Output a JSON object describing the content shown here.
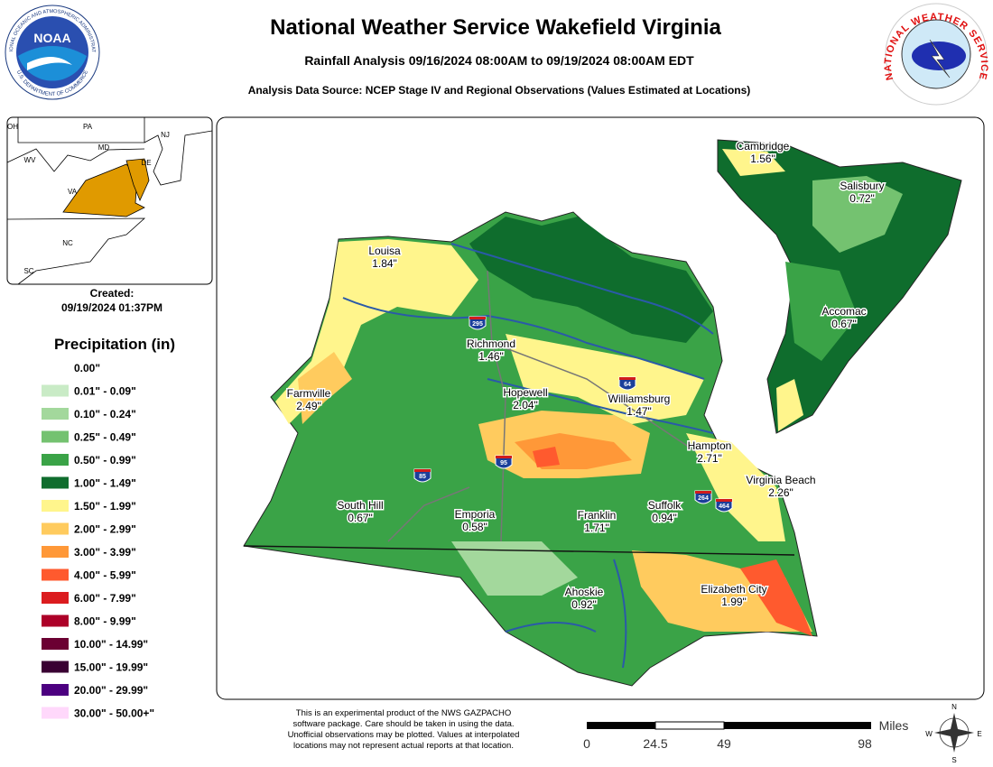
{
  "header": {
    "title": "National Weather Service Wakefield Virginia",
    "subtitle": "Rainfall Analysis 09/16/2024 08:00AM to 09/19/2024 08:00AM EDT",
    "source": "Analysis Data Source: NCEP Stage IV and Regional Observations (Values Estimated at Locations)"
  },
  "logos": {
    "noaa": "NOAA",
    "noaa_ring_top": "NATIONAL OCEANIC AND ATMOSPHERIC ADMINISTRATION",
    "noaa_ring_bottom": "U.S. DEPARTMENT OF COMMERCE",
    "nws_ring": "NATIONAL WEATHER SERVICE"
  },
  "inset": {
    "states": [
      "OH",
      "PA",
      "NJ",
      "MD",
      "DE",
      "WV",
      "VA",
      "NC",
      "SC"
    ],
    "created_label": "Created:",
    "created": "09/19/2024 01:37PM"
  },
  "legend": {
    "title": "Precipitation (in)",
    "items": [
      {
        "label": "0.00\"",
        "color": "#ffffff"
      },
      {
        "label": "0.01\" - 0.09\"",
        "color": "#c9ebc6"
      },
      {
        "label": "0.10\" - 0.24\"",
        "color": "#a3d89c"
      },
      {
        "label": "0.25\" - 0.49\"",
        "color": "#74c270"
      },
      {
        "label": "0.50\" - 0.99\"",
        "color": "#3aa347"
      },
      {
        "label": "1.00\" - 1.49\"",
        "color": "#0f6d2d"
      },
      {
        "label": "1.50\" - 1.99\"",
        "color": "#fff58c"
      },
      {
        "label": "2.00\" - 2.99\"",
        "color": "#ffcb5e"
      },
      {
        "label": "3.00\" - 3.99\"",
        "color": "#ff9838"
      },
      {
        "label": "4.00\" - 5.99\"",
        "color": "#ff5a2e"
      },
      {
        "label": "6.00\" - 7.99\"",
        "color": "#db1c1f"
      },
      {
        "label": "8.00\" - 9.99\"",
        "color": "#ad0028"
      },
      {
        "label": "10.00\" - 14.99\"",
        "color": "#6b0032"
      },
      {
        "label": "15.00\" - 19.99\"",
        "color": "#3a0033"
      },
      {
        "label": "20.00\" - 29.99\"",
        "color": "#4c0080"
      },
      {
        "label": "30.00\" - 50.00+\"",
        "color": "#ffd8fb"
      }
    ]
  },
  "cities": [
    {
      "name": "Cambridge",
      "value": "1.56\""
    },
    {
      "name": "Salisbury",
      "value": "0.72\""
    },
    {
      "name": "Accomac",
      "value": "0.67\""
    },
    {
      "name": "Louisa",
      "value": "1.84\""
    },
    {
      "name": "Richmond",
      "value": "1.46\""
    },
    {
      "name": "Farmville",
      "value": "2.49\""
    },
    {
      "name": "Hopewell",
      "value": "2.04\""
    },
    {
      "name": "Williamsburg",
      "value": "1.47\""
    },
    {
      "name": "Hampton",
      "value": "2.71\""
    },
    {
      "name": "Virginia Beach",
      "value": "2.26\""
    },
    {
      "name": "South Hill",
      "value": "0.67\""
    },
    {
      "name": "Emporia",
      "value": "0.58\""
    },
    {
      "name": "Franklin",
      "value": "1.71\""
    },
    {
      "name": "Suffolk",
      "value": "0.94\""
    },
    {
      "name": "Ahoskie",
      "value": "0.92\""
    },
    {
      "name": "Elizabeth City",
      "value": "1.99\""
    }
  ],
  "highways": [
    "295",
    "64",
    "95",
    "85",
    "264",
    "464"
  ],
  "disclaimer": [
    "This is an experimental product of the NWS GAZPACHO",
    "software package. Care should be taken in using the data.",
    "Unofficial observations may be plotted. Values at interpolated",
    "locations may not represent actual reports at that location."
  ],
  "scale": {
    "unit": "Miles",
    "ticks": [
      "0",
      "24.5",
      "49",
      "98"
    ]
  },
  "compass": [
    "N",
    "E",
    "S",
    "W"
  ]
}
